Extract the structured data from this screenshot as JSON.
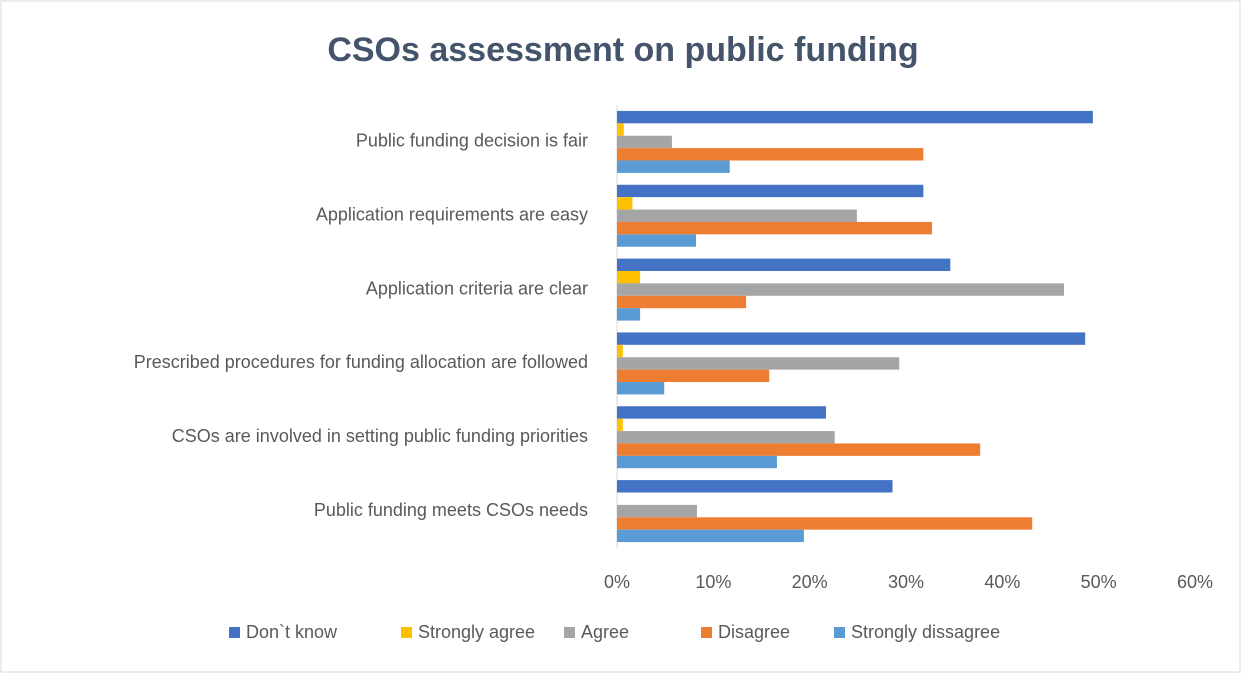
{
  "chart_data": {
    "type": "bar",
    "orientation": "horizontal",
    "title": "CSOs assessment on public funding",
    "categories": [
      "Public funding decision is fair",
      "Application requirements are easy",
      "Application criteria are clear",
      "Prescribed procedures for funding allocation are followed",
      "CSOs are involved in setting public  funding priorities",
      "Public funding meets CSOs needs"
    ],
    "series": [
      {
        "name": "Don`t know",
        "color": "#4472c4",
        "values": [
          49.4,
          31.8,
          34.6,
          48.6,
          21.7,
          28.6
        ]
      },
      {
        "name": "Strongly agree",
        "color": "#ffc000",
        "values": [
          0.7,
          1.6,
          2.4,
          0.6,
          0.6,
          0
        ]
      },
      {
        "name": "Agree",
        "color": "#a5a5a5",
        "values": [
          5.7,
          24.9,
          46.4,
          29.3,
          22.6,
          8.3
        ]
      },
      {
        "name": "Disagree",
        "color": "#ed7d31",
        "values": [
          31.8,
          32.7,
          13.4,
          15.8,
          37.7,
          43.1
        ]
      },
      {
        "name": "Strongly dissagree",
        "color": "#5b9bd5",
        "values": [
          11.7,
          8.2,
          2.4,
          4.9,
          16.6,
          19.4
        ]
      }
    ],
    "xlim": [
      0,
      60
    ],
    "xticks": [
      {
        "value": 0,
        "label": "0%"
      },
      {
        "value": 10,
        "label": "10%"
      },
      {
        "value": 20,
        "label": "20%"
      },
      {
        "value": 30,
        "label": "30%"
      },
      {
        "value": 40,
        "label": "40%"
      },
      {
        "value": 50,
        "label": "50%"
      },
      {
        "value": 60,
        "label": "60%"
      }
    ],
    "legend": "bottom",
    "grid": false
  }
}
